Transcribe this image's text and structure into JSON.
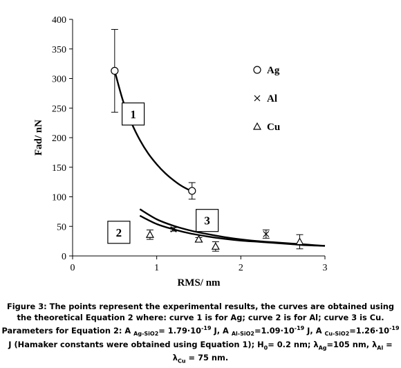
{
  "chart_data": {
    "type": "scatter",
    "xlabel": "RMS/ nm",
    "ylabel": "Fad/ nN",
    "xlim": [
      0,
      3
    ],
    "ylim": [
      0,
      400
    ],
    "xticks": [
      "0",
      "1",
      "2",
      "3"
    ],
    "yticks": [
      "0",
      "50",
      "100",
      "150",
      "200",
      "250",
      "300",
      "350",
      "400"
    ],
    "grid": false,
    "legend_position": "right",
    "series": [
      {
        "name": "Ag",
        "marker": "circle",
        "points": [
          {
            "x": 0.5,
            "y": 313,
            "err": 70
          },
          {
            "x": 1.42,
            "y": 110,
            "err": 14
          }
        ]
      },
      {
        "name": "Al",
        "marker": "x",
        "points": [
          {
            "x": 1.2,
            "y": 45,
            "err": 3
          },
          {
            "x": 2.3,
            "y": 37,
            "err": 7
          }
        ]
      },
      {
        "name": "Cu",
        "marker": "triangle",
        "points": [
          {
            "x": 0.92,
            "y": 36,
            "err": 8
          },
          {
            "x": 1.5,
            "y": 28,
            "err": 3
          },
          {
            "x": 1.7,
            "y": 16,
            "err": 8
          },
          {
            "x": 2.7,
            "y": 24,
            "err": 12
          }
        ]
      }
    ],
    "curves": [
      {
        "label": "1",
        "points": [
          [
            0.5,
            313
          ],
          [
            0.6,
            262
          ],
          [
            0.7,
            225
          ],
          [
            0.8,
            196
          ],
          [
            0.9,
            173
          ],
          [
            1.0,
            155
          ],
          [
            1.1,
            140
          ],
          [
            1.2,
            128
          ],
          [
            1.3,
            118
          ],
          [
            1.42,
            109
          ]
        ]
      },
      {
        "label": "2",
        "points": [
          [
            0.8,
            68
          ],
          [
            1.0,
            54
          ],
          [
            1.2,
            45
          ],
          [
            1.4,
            38
          ],
          [
            1.6,
            33
          ],
          [
            1.8,
            29
          ],
          [
            2.0,
            26
          ],
          [
            2.2,
            24
          ],
          [
            2.4,
            22
          ],
          [
            2.6,
            20
          ],
          [
            2.8,
            18
          ],
          [
            3.0,
            17
          ]
        ]
      },
      {
        "label": "3",
        "points": [
          [
            0.8,
            79
          ],
          [
            1.0,
            62
          ],
          [
            1.2,
            51
          ],
          [
            1.4,
            43
          ],
          [
            1.6,
            37
          ],
          [
            1.8,
            32
          ],
          [
            2.0,
            28
          ],
          [
            2.2,
            25
          ],
          [
            2.4,
            23
          ],
          [
            2.6,
            21
          ],
          [
            2.8,
            19
          ],
          [
            3.0,
            17
          ]
        ]
      }
    ],
    "curve_labels": [
      {
        "text": "1",
        "x": 0.72,
        "y": 240
      },
      {
        "text": "2",
        "x": 0.55,
        "y": 40
      },
      {
        "text": "3",
        "x": 1.6,
        "y": 60
      }
    ]
  },
  "caption": {
    "line1": "Figure 3: The points represent the experimental results, the curves are obtained using",
    "line2": "the theoretical Equation 2 where: curve 1 is for Ag; curve 2 is for Al; curve 3 is Cu.",
    "line3_prefix": "Parameters for Equation 2: A ",
    "sub_ag": "Ag-SiO2",
    "val_ag": "= 1.79·10",
    "exp1": "-19",
    "mid1": " J, A ",
    "sub_al": "Al-SiO2",
    "val_al": "=1.09·10",
    "exp2": "-19",
    "mid2": " J, A ",
    "sub_cu": "Cu-SiO2",
    "val_cu": "=1.26·10",
    "exp3": "-19",
    "line4a": " J (Hamaker constants were obtained using Equation 1); H",
    "sub_h": "0",
    "line4b": "= 0.2 nm; λ",
    "sub_lag": "Ag",
    "line4c": "=105 nm, λ",
    "sub_lal": "Al",
    "line4d": " =",
    "line5a": "λ",
    "sub_lcu": "Cu",
    "line5b": " = 75 nm."
  }
}
